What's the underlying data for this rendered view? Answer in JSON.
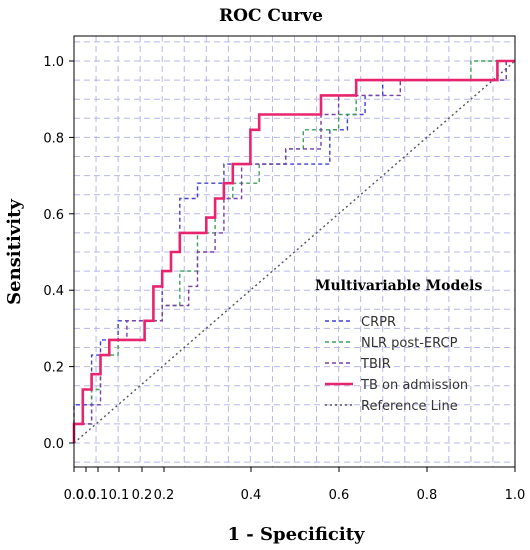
{
  "chart_data": {
    "type": "line",
    "title": "ROC Curve",
    "xlabel": "1 - Specificity",
    "ylabel": "Sensitivity",
    "xlim": [
      0,
      1
    ],
    "ylim": [
      0,
      1
    ],
    "x_ticks": [
      "0.0",
      "0.0",
      "0.1",
      "0.1",
      "0.2",
      "0.2",
      "0.4",
      "0.6",
      "0.8",
      "1.0"
    ],
    "y_ticks": [
      "0.0",
      "0.2",
      "0.4",
      "0.6",
      "0.8",
      "1.0"
    ],
    "grid": true,
    "legend": {
      "title": "Multivariable Models",
      "position": "bottom-right"
    },
    "series": [
      {
        "name": "CRPR",
        "color": "#3f3fd6",
        "style": "dashed",
        "points": [
          [
            0,
            0.05
          ],
          [
            0,
            0.1
          ],
          [
            0.04,
            0.1
          ],
          [
            0.04,
            0.23
          ],
          [
            0.06,
            0.23
          ],
          [
            0.06,
            0.27
          ],
          [
            0.1,
            0.27
          ],
          [
            0.1,
            0.32
          ],
          [
            0.2,
            0.32
          ],
          [
            0.2,
            0.45
          ],
          [
            0.22,
            0.45
          ],
          [
            0.22,
            0.5
          ],
          [
            0.24,
            0.5
          ],
          [
            0.24,
            0.64
          ],
          [
            0.28,
            0.64
          ],
          [
            0.28,
            0.68
          ],
          [
            0.34,
            0.68
          ],
          [
            0.34,
            0.73
          ],
          [
            0.58,
            0.73
          ],
          [
            0.58,
            0.82
          ],
          [
            0.62,
            0.82
          ],
          [
            0.62,
            0.86
          ],
          [
            0.66,
            0.86
          ],
          [
            0.66,
            0.91
          ],
          [
            0.7,
            0.91
          ],
          [
            0.7,
            0.95
          ],
          [
            0.98,
            0.95
          ],
          [
            0.98,
            1.0
          ],
          [
            1,
            1.0
          ]
        ]
      },
      {
        "name": "NLR post-ERCP",
        "color": "#3fa05a",
        "style": "dashed",
        "points": [
          [
            0,
            0.05
          ],
          [
            0.04,
            0.05
          ],
          [
            0.04,
            0.14
          ],
          [
            0.06,
            0.14
          ],
          [
            0.06,
            0.23
          ],
          [
            0.1,
            0.23
          ],
          [
            0.1,
            0.27
          ],
          [
            0.16,
            0.27
          ],
          [
            0.16,
            0.32
          ],
          [
            0.2,
            0.32
          ],
          [
            0.2,
            0.36
          ],
          [
            0.24,
            0.36
          ],
          [
            0.24,
            0.45
          ],
          [
            0.28,
            0.45
          ],
          [
            0.28,
            0.55
          ],
          [
            0.32,
            0.55
          ],
          [
            0.32,
            0.64
          ],
          [
            0.36,
            0.64
          ],
          [
            0.36,
            0.68
          ],
          [
            0.42,
            0.68
          ],
          [
            0.42,
            0.73
          ],
          [
            0.48,
            0.73
          ],
          [
            0.48,
            0.77
          ],
          [
            0.52,
            0.77
          ],
          [
            0.52,
            0.82
          ],
          [
            0.6,
            0.82
          ],
          [
            0.6,
            0.86
          ],
          [
            0.64,
            0.86
          ],
          [
            0.64,
            0.95
          ],
          [
            0.9,
            0.95
          ],
          [
            0.9,
            1.0
          ],
          [
            1,
            1.0
          ]
        ]
      },
      {
        "name": "TBIR",
        "color": "#7a3fa8",
        "style": "dashed",
        "points": [
          [
            0,
            0.05
          ],
          [
            0.04,
            0.05
          ],
          [
            0.04,
            0.1
          ],
          [
            0.06,
            0.1
          ],
          [
            0.06,
            0.23
          ],
          [
            0.08,
            0.23
          ],
          [
            0.08,
            0.27
          ],
          [
            0.12,
            0.27
          ],
          [
            0.12,
            0.32
          ],
          [
            0.2,
            0.32
          ],
          [
            0.2,
            0.36
          ],
          [
            0.26,
            0.36
          ],
          [
            0.26,
            0.41
          ],
          [
            0.28,
            0.41
          ],
          [
            0.28,
            0.5
          ],
          [
            0.32,
            0.5
          ],
          [
            0.32,
            0.55
          ],
          [
            0.34,
            0.55
          ],
          [
            0.34,
            0.64
          ],
          [
            0.38,
            0.64
          ],
          [
            0.38,
            0.73
          ],
          [
            0.48,
            0.73
          ],
          [
            0.48,
            0.77
          ],
          [
            0.56,
            0.77
          ],
          [
            0.56,
            0.86
          ],
          [
            0.6,
            0.86
          ],
          [
            0.6,
            0.91
          ],
          [
            0.74,
            0.91
          ],
          [
            0.74,
            0.95
          ],
          [
            0.98,
            0.95
          ],
          [
            0.98,
            1.0
          ],
          [
            1,
            1.0
          ]
        ]
      },
      {
        "name": "TB on admission",
        "color": "#e8246e",
        "style": "solid",
        "points": [
          [
            0,
            0
          ],
          [
            0,
            0.05
          ],
          [
            0.02,
            0.05
          ],
          [
            0.02,
            0.14
          ],
          [
            0.04,
            0.14
          ],
          [
            0.04,
            0.18
          ],
          [
            0.06,
            0.18
          ],
          [
            0.06,
            0.23
          ],
          [
            0.08,
            0.23
          ],
          [
            0.08,
            0.27
          ],
          [
            0.16,
            0.27
          ],
          [
            0.16,
            0.32
          ],
          [
            0.18,
            0.32
          ],
          [
            0.18,
            0.41
          ],
          [
            0.2,
            0.41
          ],
          [
            0.2,
            0.45
          ],
          [
            0.22,
            0.45
          ],
          [
            0.22,
            0.5
          ],
          [
            0.24,
            0.5
          ],
          [
            0.24,
            0.55
          ],
          [
            0.3,
            0.55
          ],
          [
            0.3,
            0.59
          ],
          [
            0.32,
            0.59
          ],
          [
            0.32,
            0.64
          ],
          [
            0.34,
            0.64
          ],
          [
            0.34,
            0.68
          ],
          [
            0.36,
            0.68
          ],
          [
            0.36,
            0.73
          ],
          [
            0.4,
            0.73
          ],
          [
            0.4,
            0.82
          ],
          [
            0.42,
            0.82
          ],
          [
            0.42,
            0.86
          ],
          [
            0.56,
            0.86
          ],
          [
            0.56,
            0.91
          ],
          [
            0.64,
            0.91
          ],
          [
            0.64,
            0.95
          ],
          [
            0.96,
            0.95
          ],
          [
            0.96,
            1.0
          ],
          [
            1,
            1.0
          ]
        ]
      },
      {
        "name": "Reference Line",
        "color": "#555555",
        "style": "dotted",
        "points": [
          [
            0,
            0
          ],
          [
            1,
            1
          ]
        ]
      }
    ]
  }
}
